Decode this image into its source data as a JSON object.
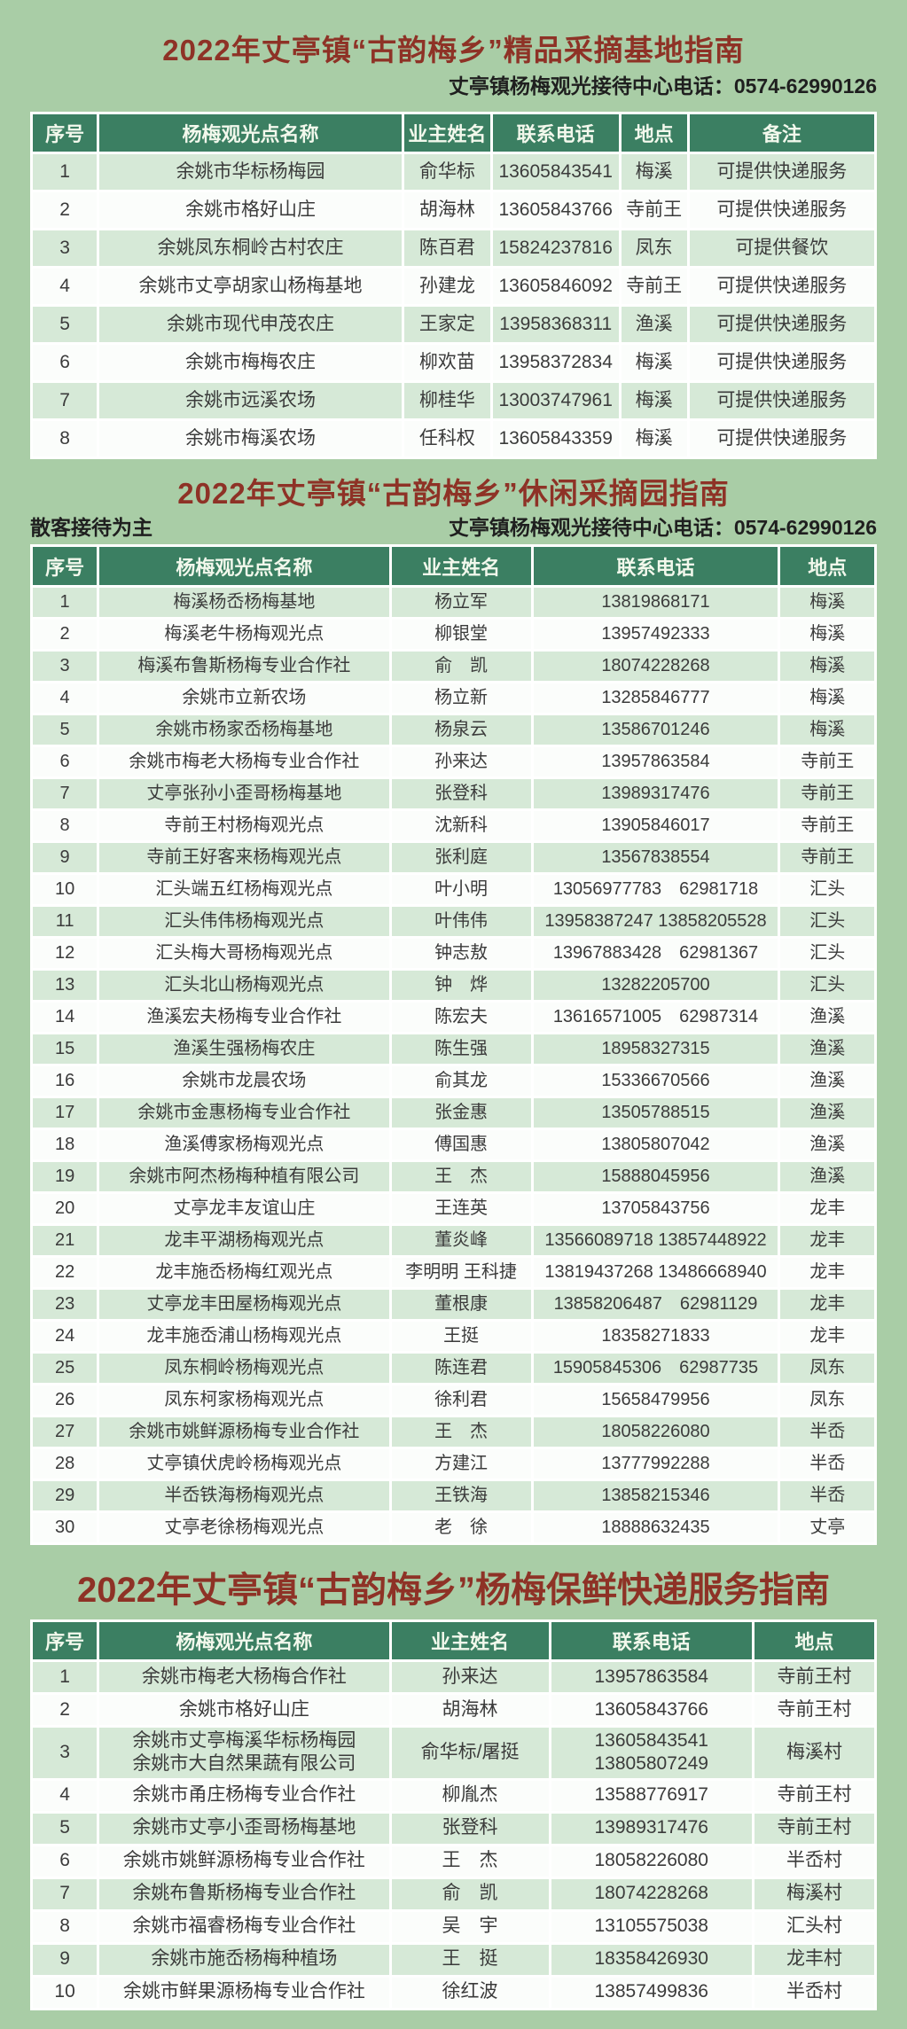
{
  "theme": {
    "page-bg": "#a9cda6",
    "title-color": "#8e3226",
    "header-bg": "#3b7f62",
    "header-text": "#f2f8ec",
    "row-odd": "#d6e9d7",
    "row-even": "#fbfdfb",
    "cell-text": "#3b3b3b"
  },
  "section1": {
    "title": "2022年丈亭镇“古韵梅乡”精品采摘基地指南",
    "subtitle": "丈亭镇杨梅观光接待中心电话：0574-62990126",
    "headers": [
      "序号",
      "杨梅观光点名称",
      "业主姓名",
      "联系电话",
      "地点",
      "备注"
    ],
    "rows": [
      [
        "1",
        "余姚市华标杨梅园",
        "俞华标",
        "13605843541",
        "梅溪",
        "可提供快递服务"
      ],
      [
        "2",
        "余姚市格好山庄",
        "胡海林",
        "13605843766",
        "寺前王",
        "可提供快递服务"
      ],
      [
        "3",
        "余姚凤东桐岭古村农庄",
        "陈百君",
        "15824237816",
        "凤东",
        "可提供餐饮"
      ],
      [
        "4",
        "余姚市丈亭胡家山杨梅基地",
        "孙建龙",
        "13605846092",
        "寺前王",
        "可提供快递服务"
      ],
      [
        "5",
        "余姚市现代申茂农庄",
        "王家定",
        "13958368311",
        "渔溪",
        "可提供快递服务"
      ],
      [
        "6",
        "余姚市梅梅农庄",
        "柳欢苗",
        "13958372834",
        "梅溪",
        "可提供快递服务"
      ],
      [
        "7",
        "余姚市远溪农场",
        "柳桂华",
        "13003747961",
        "梅溪",
        "可提供快递服务"
      ],
      [
        "8",
        "余姚市梅溪农场",
        "任科权",
        "13605843359",
        "梅溪",
        "可提供快递服务"
      ]
    ]
  },
  "section2": {
    "title": "2022年丈亭镇“古韵梅乡”休闲采摘园指南",
    "note_left": "散客接待为主",
    "subtitle": "丈亭镇杨梅观光接待中心电话：0574-62990126",
    "headers": [
      "序号",
      "杨梅观光点名称",
      "业主姓名",
      "联系电话",
      "地点"
    ],
    "rows": [
      [
        "1",
        "梅溪杨岙杨梅基地",
        "杨立军",
        "13819868171",
        "梅溪"
      ],
      [
        "2",
        "梅溪老牛杨梅观光点",
        "柳银堂",
        "13957492333",
        "梅溪"
      ],
      [
        "3",
        "梅溪布鲁斯杨梅专业合作社",
        "俞　凯",
        "18074228268",
        "梅溪"
      ],
      [
        "4",
        "余姚市立新农场",
        "杨立新",
        "13285846777",
        "梅溪"
      ],
      [
        "5",
        "余姚市杨家岙杨梅基地",
        "杨泉云",
        "13586701246",
        "梅溪"
      ],
      [
        "6",
        "余姚市梅老大杨梅专业合作社",
        "孙来达",
        "13957863584",
        "寺前王"
      ],
      [
        "7",
        "丈亭张孙小歪哥杨梅基地",
        "张登科",
        "13989317476",
        "寺前王"
      ],
      [
        "8",
        "寺前王村杨梅观光点",
        "沈新科",
        "13905846017",
        "寺前王"
      ],
      [
        "9",
        "寺前王好客来杨梅观光点",
        "张利庭",
        "13567838554",
        "寺前王"
      ],
      [
        "10",
        "汇头端五红杨梅观光点",
        "叶小明",
        "13056977783　62981718",
        "汇头"
      ],
      [
        "11",
        "汇头伟伟杨梅观光点",
        "叶伟伟",
        "13958387247 13858205528",
        "汇头"
      ],
      [
        "12",
        "汇头梅大哥杨梅观光点",
        "钟志敖",
        "13967883428　62981367",
        "汇头"
      ],
      [
        "13",
        "汇头北山杨梅观光点",
        "钟　烨",
        "13282205700",
        "汇头"
      ],
      [
        "14",
        "渔溪宏夫杨梅专业合作社",
        "陈宏夫",
        "13616571005　62987314",
        "渔溪"
      ],
      [
        "15",
        "渔溪生强杨梅农庄",
        "陈生强",
        "18958327315",
        "渔溪"
      ],
      [
        "16",
        "余姚市龙晨农场",
        "俞其龙",
        "15336670566",
        "渔溪"
      ],
      [
        "17",
        "余姚市金惠杨梅专业合作社",
        "张金惠",
        "13505788515",
        "渔溪"
      ],
      [
        "18",
        "渔溪傅家杨梅观光点",
        "傅国惠",
        "13805807042",
        "渔溪"
      ],
      [
        "19",
        "余姚市阿杰杨梅种植有限公司",
        "王　杰",
        "15888045956",
        "渔溪"
      ],
      [
        "20",
        "丈亭龙丰友谊山庄",
        "王连英",
        "13705843756",
        "龙丰"
      ],
      [
        "21",
        "龙丰平湖杨梅观光点",
        "董炎峰",
        "13566089718 13857448922",
        "龙丰"
      ],
      [
        "22",
        "龙丰施岙杨梅红观光点",
        "李明明 王科捷",
        "13819437268 13486668940",
        "龙丰"
      ],
      [
        "23",
        "丈亭龙丰田屋杨梅观光点",
        "董根康",
        "13858206487　62981129",
        "龙丰"
      ],
      [
        "24",
        "龙丰施岙浦山杨梅观光点",
        "王挺",
        "18358271833",
        "龙丰"
      ],
      [
        "25",
        "凤东桐岭杨梅观光点",
        "陈连君",
        "15905845306　62987735",
        "凤东"
      ],
      [
        "26",
        "凤东柯家杨梅观光点",
        "徐利君",
        "15658479956",
        "凤东"
      ],
      [
        "27",
        "余姚市姚鲜源杨梅专业合作社",
        "王　杰",
        "18058226080",
        "半岙"
      ],
      [
        "28",
        "丈亭镇伏虎岭杨梅观光点",
        "方建江",
        "13777992288",
        "半岙"
      ],
      [
        "29",
        "半岙铁海杨梅观光点",
        "王铁海",
        "13858215346",
        "半岙"
      ],
      [
        "30",
        "丈亭老徐杨梅观光点",
        "老　徐",
        "18888632435",
        "丈亭"
      ]
    ]
  },
  "section3": {
    "title": "2022年丈亭镇“古韵梅乡”杨梅保鲜快递服务指南",
    "headers": [
      "序号",
      "杨梅观光点名称",
      "业主姓名",
      "联系电话",
      "地点"
    ],
    "rows": [
      [
        "1",
        "余姚市梅老大杨梅合作社",
        "孙来达",
        "13957863584",
        "寺前王村"
      ],
      [
        "2",
        "余姚市格好山庄",
        "胡海林",
        "13605843766",
        "寺前王村"
      ],
      [
        "3",
        "余姚市丈亭梅溪华标杨梅园\n余姚市大自然果蔬有限公司",
        "俞华标/屠挺",
        "13605843541\n13805807249",
        "梅溪村"
      ],
      [
        "4",
        "余姚市甬庄杨梅专业合作社",
        "柳胤杰",
        "13588776917",
        "寺前王村"
      ],
      [
        "5",
        "余姚市丈亭小歪哥杨梅基地",
        "张登科",
        "13989317476",
        "寺前王村"
      ],
      [
        "6",
        "余姚市姚鲜源杨梅专业合作社",
        "王　杰",
        "18058226080",
        "半岙村"
      ],
      [
        "7",
        "余姚布鲁斯杨梅专业合作社",
        "俞　凯",
        "18074228268",
        "梅溪村"
      ],
      [
        "8",
        "余姚市福睿杨梅专业合作社",
        "吴　宇",
        "13105575038",
        "汇头村"
      ],
      [
        "9",
        "余姚市施岙杨梅种植场",
        "王　挺",
        "18358426930",
        "龙丰村"
      ],
      [
        "10",
        "余姚市鲜果源杨梅专业合作社",
        "徐红波",
        "13857499836",
        "半岙村"
      ]
    ]
  }
}
